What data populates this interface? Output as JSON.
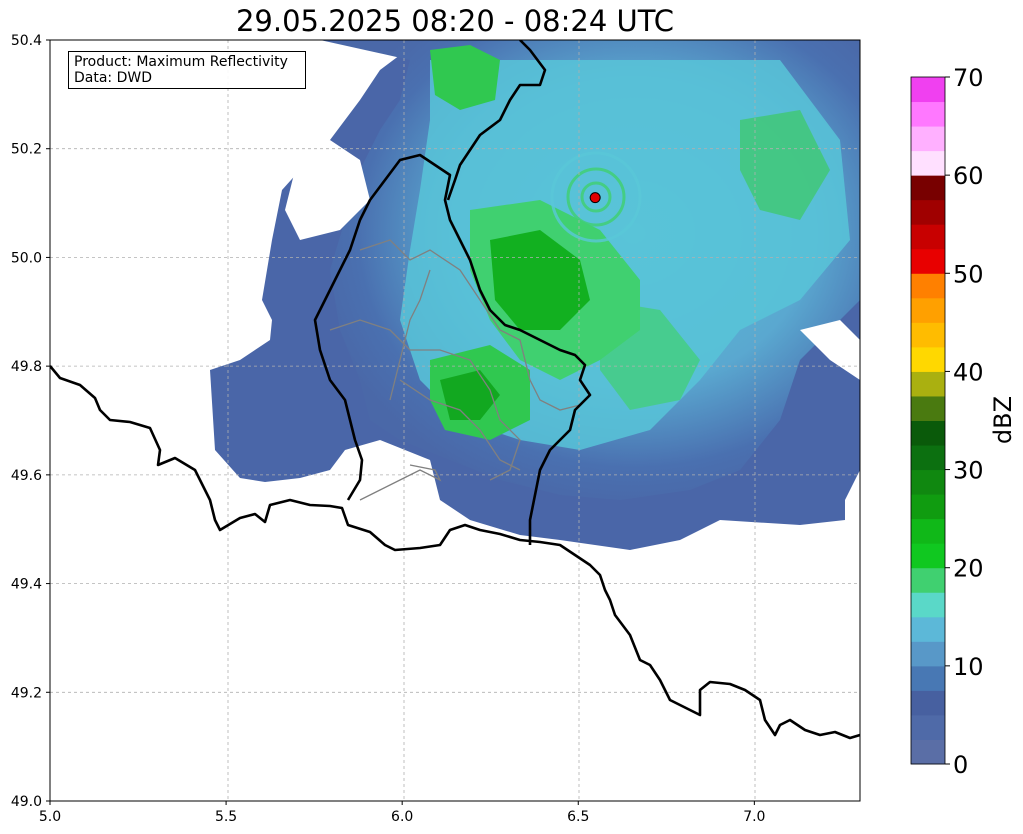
{
  "title": "29.05.2025 08:20 - 08:24 UTC",
  "info_box": {
    "product_line": "Product: Maximum Reflectivity",
    "data_line": "Data: DWD"
  },
  "map": {
    "lon_range": [
      5.0,
      7.3
    ],
    "lat_range": [
      49.0,
      50.4
    ],
    "x_ticks": [
      "5.0",
      "5.5",
      "6.0",
      "6.5",
      "7.0"
    ],
    "y_ticks": [
      "49.0",
      "49.2",
      "49.4",
      "49.6",
      "49.8",
      "50.0",
      "50.2",
      "50.4"
    ],
    "radar_site": {
      "lon": 6.548,
      "lat": 50.11,
      "color": "#e00000"
    },
    "grid": true
  },
  "colorbar": {
    "label": "dBZ",
    "tick_labels": [
      "0",
      "10",
      "20",
      "30",
      "40",
      "50",
      "60",
      "70"
    ],
    "min": 0,
    "max": 70,
    "step": 2.5,
    "colors": [
      "#5a6ea6",
      "#4f6aa8",
      "#4760a0",
      "#4878b4",
      "#5898c8",
      "#5cb8d8",
      "#5ad8c8",
      "#40d070",
      "#10c820",
      "#10b818",
      "#109c10",
      "#108810",
      "#0c7010",
      "#0a5a0a",
      "#4a7a10",
      "#aab010",
      "#ffd800",
      "#ffbc00",
      "#ffa000",
      "#ff8000",
      "#e80000",
      "#c80000",
      "#a00000",
      "#780000",
      "#ffe0ff",
      "#ffb0ff",
      "#ff78ff",
      "#f040f0"
    ]
  }
}
